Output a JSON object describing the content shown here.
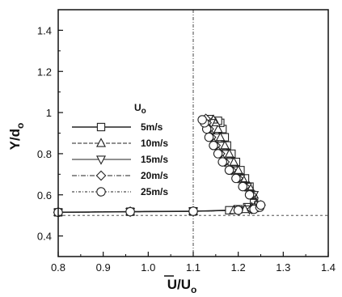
{
  "chart_data": {
    "type": "line",
    "xlabel": "U/U",
    "xlabel_sub": "o",
    "ylabel": "Y/d",
    "ylabel_sub": "o",
    "xlim": [
      0.8,
      1.4
    ],
    "ylim": [
      0.3,
      1.5
    ],
    "xticks": [
      0.8,
      0.9,
      1.0,
      1.1,
      1.2,
      1.3,
      1.4
    ],
    "xtick_labels": [
      "0.8",
      "0.9",
      "1.0",
      "1.1",
      "1.2",
      "1.3",
      "1.4"
    ],
    "yticks": [
      0.4,
      0.6,
      0.8,
      1.0,
      1.2,
      1.4
    ],
    "ytick_labels": [
      "0.4",
      "0.6",
      "0.8",
      "1",
      "1.2",
      "1.4"
    ],
    "reference_lines": {
      "vertical_x": 1.1,
      "horizontal_y": 0.5
    },
    "legend_title": "Uo",
    "legend_title_main": "U",
    "legend_title_sub": "o",
    "legend_position": "left",
    "series": [
      {
        "name": "5m/s",
        "marker": "square",
        "x": [
          0.8,
          0.96,
          1.1,
          1.18,
          1.2,
          1.22,
          1.235,
          1.23,
          1.225,
          1.215,
          1.205,
          1.195,
          1.185,
          1.175,
          1.17,
          1.165,
          1.16,
          1.155
        ],
        "y": [
          0.515,
          0.518,
          0.52,
          0.525,
          0.53,
          0.54,
          0.56,
          0.6,
          0.64,
          0.68,
          0.72,
          0.76,
          0.8,
          0.84,
          0.88,
          0.92,
          0.95,
          0.96
        ]
      },
      {
        "name": "10m/s",
        "marker": "triangle-up",
        "x": [
          0.8,
          0.96,
          1.1,
          1.19,
          1.215,
          1.23,
          1.24,
          1.235,
          1.225,
          1.21,
          1.2,
          1.19,
          1.18,
          1.17,
          1.16,
          1.155,
          1.15,
          1.145
        ],
        "y": [
          0.515,
          0.518,
          0.52,
          0.525,
          0.53,
          0.54,
          0.555,
          0.6,
          0.64,
          0.68,
          0.72,
          0.76,
          0.8,
          0.84,
          0.88,
          0.92,
          0.95,
          0.965
        ]
      },
      {
        "name": "15m/s",
        "marker": "triangle-down",
        "x": [
          0.8,
          0.96,
          1.1,
          1.2,
          1.225,
          1.24,
          1.245,
          1.235,
          1.22,
          1.205,
          1.19,
          1.18,
          1.17,
          1.16,
          1.15,
          1.145,
          1.14,
          1.135
        ],
        "y": [
          0.515,
          0.518,
          0.52,
          0.525,
          0.53,
          0.54,
          0.55,
          0.6,
          0.64,
          0.68,
          0.72,
          0.76,
          0.8,
          0.84,
          0.88,
          0.92,
          0.95,
          0.97
        ]
      },
      {
        "name": "20m/s",
        "marker": "diamond",
        "x": [
          0.8,
          0.96,
          1.1,
          1.2,
          1.23,
          1.245,
          1.25,
          1.23,
          1.215,
          1.2,
          1.185,
          1.17,
          1.16,
          1.15,
          1.14,
          1.135,
          1.13,
          1.128
        ],
        "y": [
          0.515,
          0.518,
          0.52,
          0.525,
          0.53,
          0.54,
          0.55,
          0.6,
          0.64,
          0.68,
          0.72,
          0.76,
          0.8,
          0.84,
          0.88,
          0.92,
          0.95,
          0.97
        ]
      },
      {
        "name": "25m/s",
        "marker": "circle",
        "x": [
          0.8,
          0.96,
          1.1,
          1.2,
          1.235,
          1.248,
          1.25,
          1.225,
          1.21,
          1.195,
          1.18,
          1.165,
          1.155,
          1.145,
          1.135,
          1.13,
          1.125,
          1.12
        ],
        "y": [
          0.515,
          0.518,
          0.52,
          0.525,
          0.53,
          0.54,
          0.55,
          0.6,
          0.64,
          0.68,
          0.72,
          0.76,
          0.8,
          0.84,
          0.88,
          0.92,
          0.95,
          0.965
        ]
      }
    ]
  }
}
